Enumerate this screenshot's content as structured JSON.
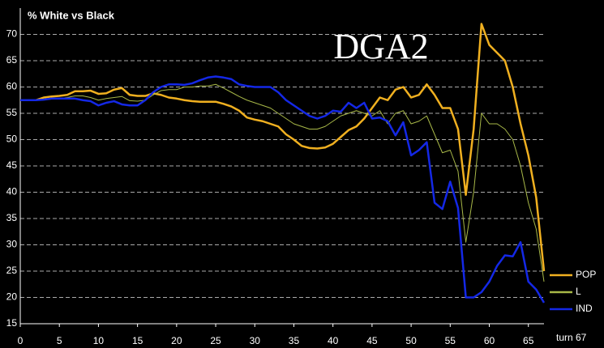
{
  "chart_data": {
    "type": "line",
    "title": "% White vs Black",
    "annotation": "DGA2",
    "x_label": "turn 67",
    "x": [
      0,
      1,
      2,
      3,
      4,
      5,
      6,
      7,
      8,
      9,
      10,
      11,
      12,
      13,
      14,
      15,
      16,
      17,
      18,
      19,
      20,
      21,
      22,
      23,
      24,
      25,
      26,
      27,
      28,
      29,
      30,
      31,
      32,
      33,
      34,
      35,
      36,
      37,
      38,
      39,
      40,
      41,
      42,
      43,
      44,
      45,
      46,
      47,
      48,
      49,
      50,
      51,
      52,
      53,
      54,
      55,
      56,
      57,
      58,
      59,
      60,
      61,
      62,
      63,
      64,
      65,
      66,
      67
    ],
    "series": [
      {
        "name": "POP",
        "color": "#f0b020",
        "width": 2.5,
        "values": [
          57.5,
          57.5,
          57.5,
          58,
          58.2,
          58.3,
          58.5,
          59.2,
          59.2,
          59.3,
          58.7,
          58.8,
          59.5,
          59.8,
          58.5,
          58.3,
          58.3,
          58.8,
          58.5,
          58,
          57.8,
          57.5,
          57.3,
          57.2,
          57.2,
          57.2,
          56.8,
          56.3,
          55.5,
          54.2,
          53.8,
          53.5,
          53,
          52.5,
          51,
          50,
          48.8,
          48.4,
          48.3,
          48.5,
          49.2,
          50.5,
          51.8,
          52.5,
          54,
          56,
          58,
          57.5,
          59.5,
          60,
          58,
          58.5,
          60.5,
          58.5,
          56,
          56,
          52,
          39.5,
          52,
          72,
          68,
          66.5,
          65,
          60,
          53,
          47,
          39,
          25
        ]
      },
      {
        "name": "L",
        "color": "#a8b848",
        "width": 1,
        "values": [
          57.5,
          57.5,
          57.5,
          57.6,
          57.7,
          57.8,
          58,
          58.3,
          58.3,
          58,
          57.5,
          57.8,
          58,
          58.2,
          57.4,
          57.3,
          57.5,
          58.5,
          59.3,
          59.5,
          59.5,
          60,
          60,
          60.2,
          60.2,
          60.5,
          59.8,
          59,
          58.2,
          57.5,
          57,
          56.5,
          56,
          55,
          54,
          53,
          52.5,
          52,
          52,
          52.5,
          53.5,
          54.5,
          55,
          55.5,
          55,
          54.5,
          55.5,
          53,
          55,
          55.5,
          53,
          53.5,
          54.5,
          51,
          47.5,
          48,
          44,
          30.5,
          40,
          55,
          53,
          53,
          52,
          50,
          45,
          38,
          33,
          23
        ]
      },
      {
        "name": "IND",
        "color": "#1428e6",
        "width": 2.5,
        "values": [
          57.5,
          57.5,
          57.5,
          57.6,
          57.8,
          57.8,
          57.8,
          57.8,
          57.5,
          57.3,
          56.5,
          57,
          57.3,
          56.7,
          56.5,
          56.5,
          57.5,
          59,
          60,
          60.5,
          60.5,
          60.4,
          60.7,
          61.3,
          61.8,
          62,
          61.8,
          61.5,
          60.5,
          60.2,
          60,
          60,
          60,
          59,
          57.5,
          56.5,
          55.5,
          54.5,
          54,
          54.5,
          55.5,
          55.3,
          57,
          56,
          57,
          54,
          54.2,
          53.5,
          50.8,
          53.3,
          47,
          48,
          49.5,
          38,
          36.8,
          42,
          37,
          20,
          20,
          21,
          23,
          26,
          28,
          27.8,
          30.5,
          23,
          21.5,
          19
        ]
      }
    ],
    "xlim": [
      0,
      67
    ],
    "ylim": [
      15,
      75
    ],
    "xticks": [
      0,
      5,
      10,
      15,
      20,
      25,
      30,
      35,
      40,
      45,
      50,
      55,
      60,
      65
    ],
    "yticks": [
      15,
      20,
      25,
      30,
      35,
      40,
      45,
      50,
      55,
      60,
      65,
      70
    ],
    "grid": true,
    "legend": "lower right"
  }
}
